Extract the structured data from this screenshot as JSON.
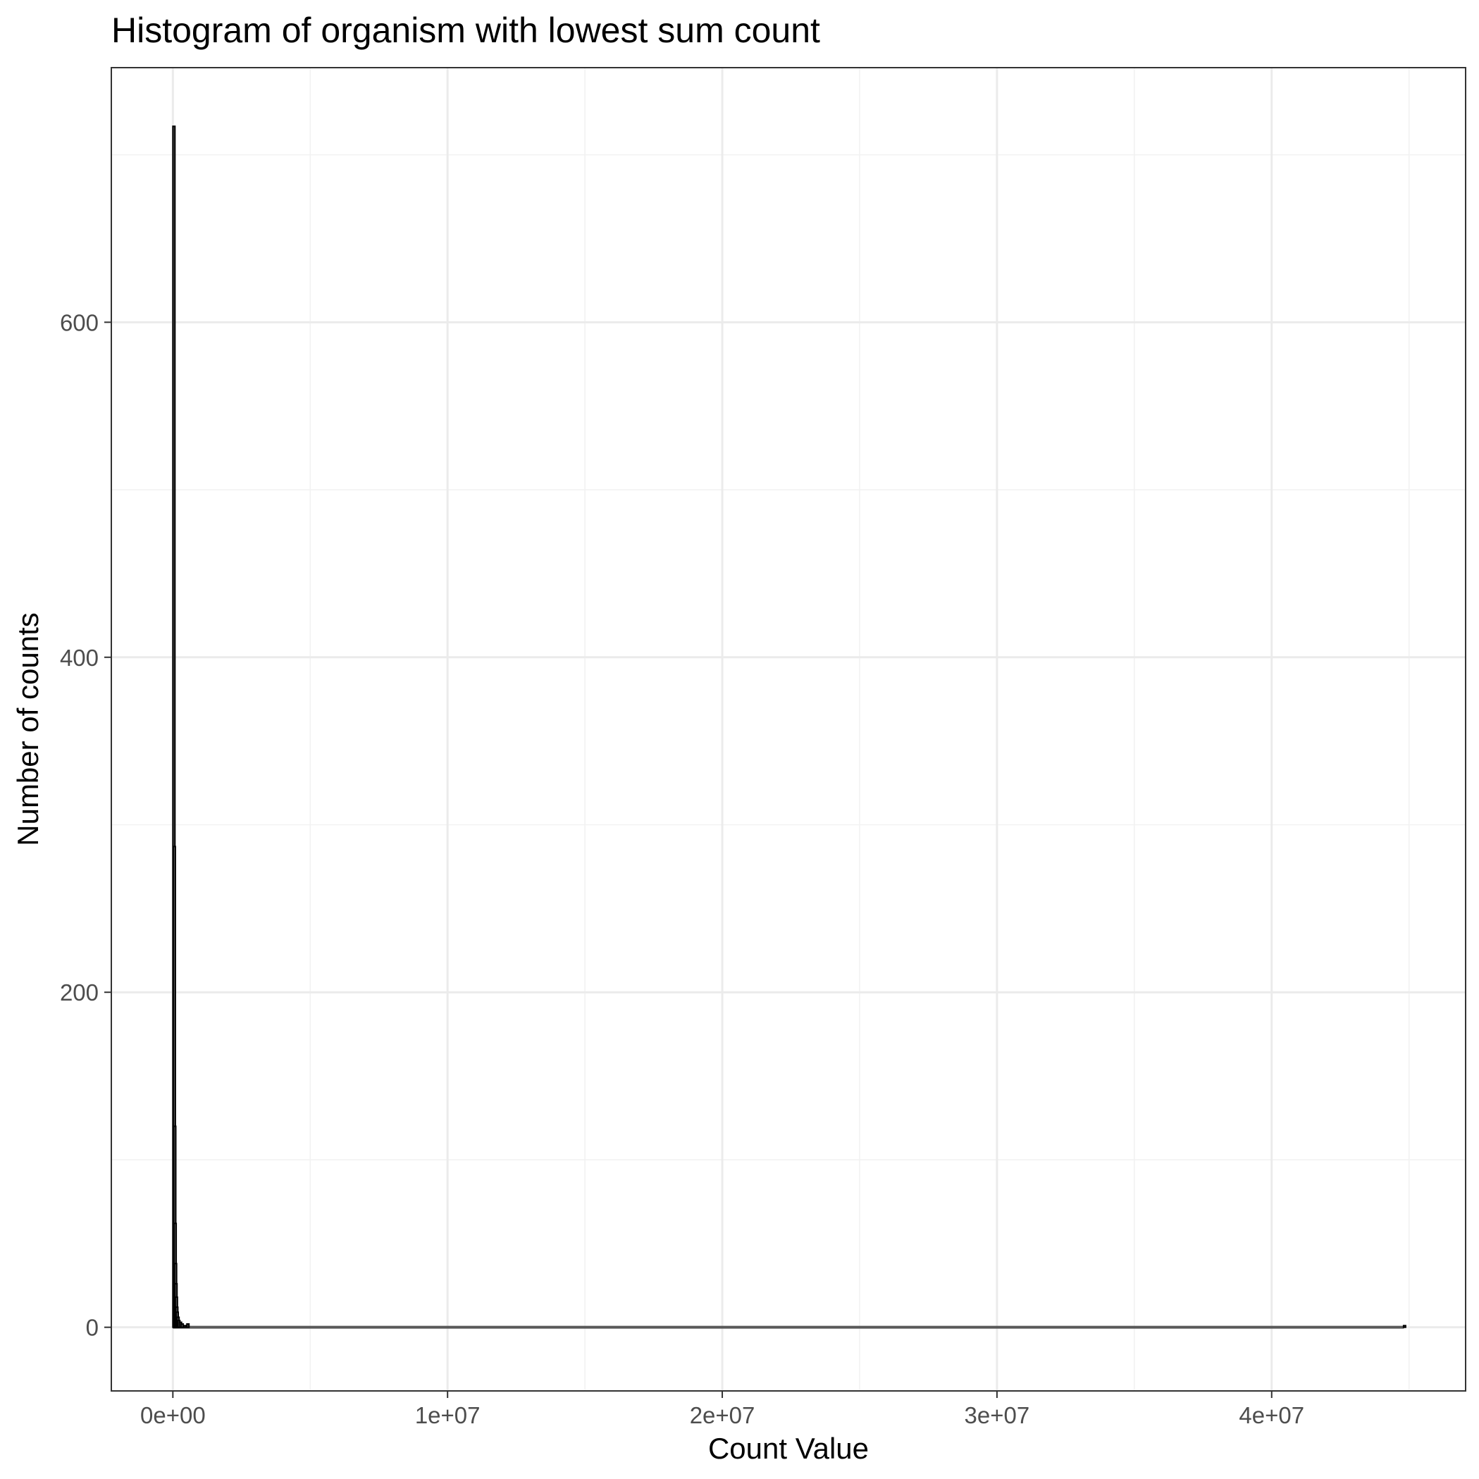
{
  "chart_data": {
    "type": "bar",
    "title": "Histogram of organism with lowest sum count",
    "xlabel": "Count Value",
    "ylabel": "Number of counts",
    "xlim": [
      -2240000,
      47060000
    ],
    "ylim": [
      -38,
      752
    ],
    "x_ticks": [
      {
        "value": 0,
        "label": "0e+00"
      },
      {
        "value": 10000000,
        "label": "1e+07"
      },
      {
        "value": 20000000,
        "label": "2e+07"
      },
      {
        "value": 30000000,
        "label": "3e+07"
      },
      {
        "value": 40000000,
        "label": "4e+07"
      }
    ],
    "y_ticks": [
      {
        "value": 0,
        "label": "0"
      },
      {
        "value": 200,
        "label": "200"
      },
      {
        "value": 400,
        "label": "400"
      },
      {
        "value": 600,
        "label": "600"
      }
    ],
    "x_minor_breaks": [
      5000000,
      15000000,
      25000000,
      35000000,
      45000000
    ],
    "y_minor_breaks": [
      100,
      300,
      500,
      700
    ],
    "bin_width": 15000,
    "bins": [
      {
        "x": 0,
        "count": 717
      },
      {
        "x": 15000,
        "count": 287
      },
      {
        "x": 30000,
        "count": 120
      },
      {
        "x": 45000,
        "count": 62
      },
      {
        "x": 60000,
        "count": 38
      },
      {
        "x": 75000,
        "count": 26
      },
      {
        "x": 90000,
        "count": 18
      },
      {
        "x": 105000,
        "count": 12
      },
      {
        "x": 120000,
        "count": 9
      },
      {
        "x": 150000,
        "count": 6
      },
      {
        "x": 180000,
        "count": 4
      },
      {
        "x": 240000,
        "count": 3
      },
      {
        "x": 300000,
        "count": 2
      },
      {
        "x": 390000,
        "count": 1
      },
      {
        "x": 510000,
        "count": 2
      },
      {
        "x": 44800000,
        "count": 1
      }
    ],
    "grid": true,
    "legend": "none",
    "colors": {
      "bar_outline": "#000000",
      "bar_fill": "#595959",
      "grid_major": "#ebebeb",
      "grid_minor": "#f2f2f2",
      "panel_border": "#333333",
      "tick_text": "#4d4d4d"
    }
  }
}
